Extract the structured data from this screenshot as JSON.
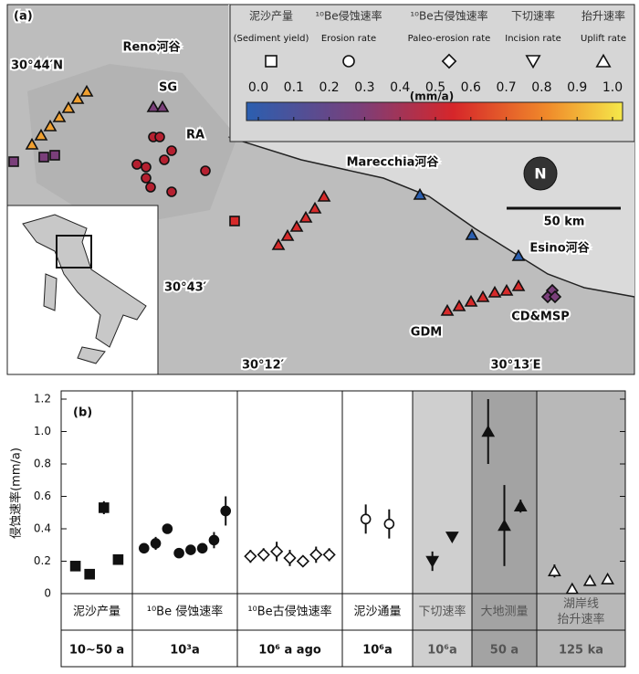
{
  "map": {
    "panel_label": "(a)",
    "place_labels": [
      "Reno河谷",
      "SG",
      "RA",
      "Marecchia河谷",
      "Esino河谷",
      "GDM",
      "CD&MSP"
    ],
    "coordinates": [
      "30°44′N",
      "30°43′",
      "30°12′",
      "30°13′E"
    ],
    "scale_label": "50 km",
    "north_label": "N",
    "legend": [
      {
        "name": "泥沙产量",
        "name_en": "(Sediment yield)",
        "marker": "square"
      },
      {
        "name": "¹⁰Be侵蚀速率",
        "name_en": "Erosion rate",
        "marker": "circle"
      },
      {
        "name": "¹⁰Be古侵蚀速率",
        "name_en": "Paleo-erosion rate",
        "marker": "diamond"
      },
      {
        "name": "下切速率",
        "name_en": "Incision rate",
        "marker": "triangle-down"
      },
      {
        "name": "抬升速率",
        "name_en": "Uplift rate",
        "marker": "triangle-up"
      }
    ],
    "colorbar": {
      "ticks": [
        {
          "value": 0,
          "label": "0.0"
        },
        0.1,
        0.2,
        0.3,
        0.4,
        0.5,
        0.6,
        0.7,
        0.8,
        0.9,
        {
          "value": 1,
          "label": "1.0"
        }
      ],
      "range": [
        0,
        1
      ],
      "unit": "(mm/a)"
    }
  },
  "chart_data": {
    "type": "scatter",
    "panel_label": "(b)",
    "ylabel": "侵蚀速率(mm/a)",
    "ylim": [
      0,
      1.2
    ],
    "yticks": [
      0,
      0.2,
      0.4,
      0.6,
      0.8,
      {
        "value": 1,
        "label": "1.0"
      },
      1.2
    ],
    "groups": [
      {
        "name": [
          "泥沙产量"
        ],
        "timescale": "10~50 a",
        "background": "#ffffff",
        "marker": "square",
        "filled": true,
        "points": [
          {
            "value": 0.17
          },
          {
            "value": 0.12
          },
          {
            "value": 0.53,
            "error": 0.04
          },
          {
            "value": 0.21
          }
        ]
      },
      {
        "name": [
          "¹⁰Be 侵蚀速率"
        ],
        "timescale": "10³a",
        "background": "#ffffff",
        "marker": "circle",
        "filled": true,
        "points": [
          {
            "value": 0.28,
            "error": 0.03
          },
          {
            "value": 0.31,
            "error": 0.04
          },
          {
            "value": 0.4
          },
          {
            "value": 0.25
          },
          {
            "value": 0.27
          },
          {
            "value": 0.28
          },
          {
            "value": 0.33,
            "error": 0.05
          },
          {
            "value": 0.51,
            "error": 0.09
          }
        ]
      },
      {
        "name": [
          "¹⁰Be古侵蚀速率"
        ],
        "timescale": "10⁶ a ago",
        "background": "#ffffff",
        "marker": "diamond",
        "filled": false,
        "points": [
          {
            "value": 0.23,
            "error": 0.04
          },
          {
            "value": 0.24,
            "error": 0.04
          },
          {
            "value": 0.26,
            "error": 0.06
          },
          {
            "value": 0.22,
            "error": 0.05
          },
          {
            "value": 0.2,
            "error": 0.03
          },
          {
            "value": 0.24,
            "error": 0.05
          },
          {
            "value": 0.24,
            "error": 0.04
          }
        ]
      },
      {
        "name": [
          "泥沙通量"
        ],
        "timescale": "10⁶a",
        "background": "#ffffff",
        "marker": "circle",
        "filled": false,
        "points": [
          {
            "value": 0.46,
            "error": 0.09
          },
          {
            "value": 0.43,
            "error": 0.09
          }
        ]
      },
      {
        "name": [
          "下切速率"
        ],
        "timescale": "10⁶a",
        "background": "#cfcfcf",
        "marker": "triangle-down",
        "filled": true,
        "points": [
          {
            "value": 0.2,
            "error": 0.06
          },
          {
            "value": 0.35
          }
        ]
      },
      {
        "name": [
          "大地测量"
        ],
        "timescale": "50 a",
        "background": "#a3a3a3",
        "marker": "triangle-up",
        "filled": true,
        "points": [
          {
            "value": 1.0,
            "error": 0.2
          },
          {
            "value": 0.42,
            "error": 0.25
          },
          {
            "value": 0.54,
            "error": 0.04
          }
        ]
      },
      {
        "name": [
          "湖岸线",
          "抬升速率"
        ],
        "timescale": "125 ka",
        "background": "#b8b8b8",
        "marker": "triangle-up",
        "filled": false,
        "points": [
          {
            "value": 0.14,
            "error": 0.04
          },
          {
            "value": 0.03
          },
          {
            "value": 0.08
          },
          {
            "value": 0.09
          }
        ]
      }
    ]
  }
}
